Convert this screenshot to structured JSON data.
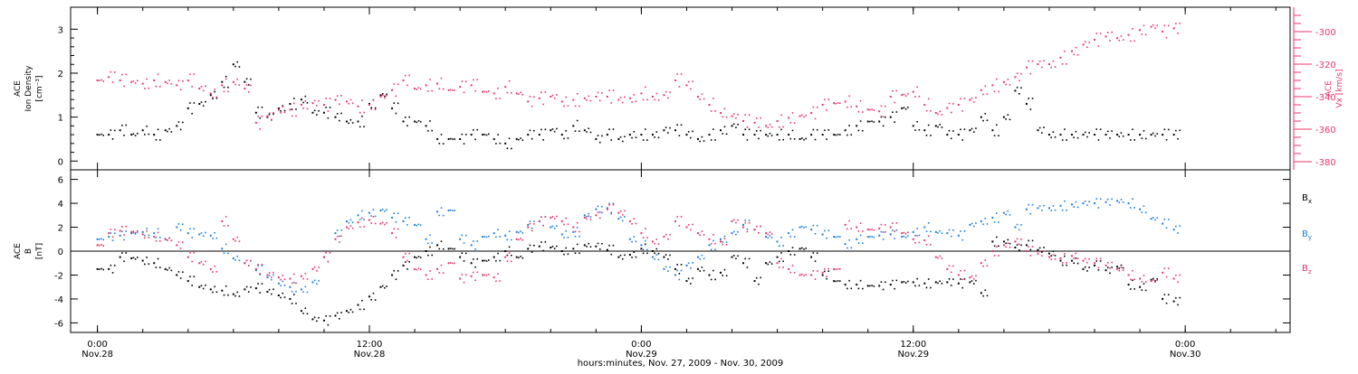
{
  "chart_data": [
    {
      "type": "scatter",
      "panel": "top",
      "ylabel_left": [
        "ACE",
        "Ion Density",
        "[cm⁻³]"
      ],
      "ylabel_right": [
        "ACE",
        "Vx [km/s]"
      ],
      "ylim_left": [
        -0.2,
        3.5
      ],
      "yticks_left": [
        "0",
        "1",
        "2",
        "3"
      ],
      "ylim_right": [
        -385,
        -285
      ],
      "yticks_right": [
        "-300",
        "-320",
        "-340",
        "-360",
        "-380"
      ],
      "series": [
        {
          "color": "#000000",
          "x": [
            0,
            0.5,
            1,
            1.5,
            2,
            2.5,
            3,
            3.5,
            4,
            4.5,
            5,
            5.5,
            6,
            6.5,
            7,
            7.5,
            8,
            8.5,
            9,
            9.5,
            10,
            10.5,
            11,
            11.5,
            12,
            12.5,
            13,
            13.5,
            14,
            14.5,
            15,
            15.5,
            16,
            16.5,
            17,
            17.5,
            18,
            18.5,
            19,
            19.5,
            20,
            20.5,
            21,
            21.5,
            22,
            22.5,
            23,
            23.5,
            24,
            24.5,
            25,
            25.5,
            26,
            26.5,
            27,
            27.5,
            28,
            28.5,
            29,
            29.5,
            30,
            30.5,
            31,
            31.5,
            32,
            32.5,
            33,
            33.5,
            34,
            34.5,
            35,
            35.5,
            36,
            36.5,
            37,
            37.5,
            38,
            38.5,
            39,
            39.5,
            40,
            40.5,
            41,
            41.5,
            42,
            42.5,
            43,
            43.5,
            44,
            44.5,
            45,
            45.5,
            46,
            46.5,
            47,
            47.5
          ],
          "values": [
            0.6,
            0.6,
            0.7,
            0.6,
            0.7,
            0.6,
            0.7,
            0.8,
            1.2,
            1.3,
            1.5,
            1.8,
            2.2,
            1.8,
            1.1,
            1.0,
            1.2,
            1.3,
            1.4,
            1.1,
            1.1,
            1.0,
            0.9,
            0.9,
            1.3,
            1.5,
            1.2,
            0.9,
            0.9,
            0.8,
            0.5,
            0.5,
            0.5,
            0.6,
            0.6,
            0.5,
            0.4,
            0.5,
            0.6,
            0.6,
            0.7,
            0.6,
            0.8,
            0.7,
            0.5,
            0.6,
            0.5,
            0.6,
            0.6,
            0.6,
            0.7,
            0.7,
            0.6,
            0.5,
            0.6,
            0.7,
            0.8,
            0.6,
            0.6,
            0.6,
            0.6,
            0.6,
            0.5,
            0.6,
            0.6,
            0.6,
            0.7,
            0.8,
            0.9,
            0.9,
            1.0,
            1.2,
            0.8,
            0.7,
            0.8,
            0.6,
            0.6,
            0.7,
            1.0,
            0.7,
            1.0,
            1.6,
            1.3,
            0.7,
            0.6,
            0.6,
            0.6,
            0.6,
            0.6,
            0.6,
            0.6,
            0.6,
            0.6,
            0.6,
            0.6,
            0.6
          ]
        },
        {
          "color": "#e8366a",
          "axis": "right",
          "x": [
            0,
            0.5,
            1,
            1.5,
            2,
            2.5,
            3,
            3.5,
            4,
            4.5,
            5,
            5.5,
            6,
            6.5,
            7,
            7.5,
            8,
            8.5,
            9,
            9.5,
            10,
            10.5,
            11,
            11.5,
            12,
            12.5,
            13,
            13.5,
            14,
            14.5,
            15,
            15.5,
            16,
            16.5,
            17,
            17.5,
            18,
            18.5,
            19,
            19.5,
            20,
            20.5,
            21,
            21.5,
            22,
            22.5,
            23,
            23.5,
            24,
            24.5,
            25,
            25.5,
            26,
            26.5,
            27,
            27.5,
            28,
            28.5,
            29,
            29.5,
            30,
            30.5,
            31,
            31.5,
            32,
            32.5,
            33,
            33.5,
            34,
            34.5,
            35,
            35.5,
            36,
            36.5,
            37,
            37.5,
            38,
            38.5,
            39,
            39.5,
            40,
            40.5,
            41,
            41.5,
            42,
            42.5,
            43,
            43.5,
            44,
            44.5,
            45,
            45.5,
            46,
            46.5,
            47,
            47.5
          ],
          "values": [
            -330,
            -328,
            -330,
            -331,
            -332,
            -330,
            -331,
            -333,
            -330,
            -335,
            -338,
            -333,
            -331,
            -335,
            -356,
            -352,
            -348,
            -348,
            -345,
            -344,
            -345,
            -342,
            -343,
            -346,
            -345,
            -340,
            -336,
            -330,
            -335,
            -333,
            -332,
            -336,
            -334,
            -333,
            -337,
            -338,
            -334,
            -338,
            -343,
            -341,
            -340,
            -343,
            -342,
            -341,
            -340,
            -340,
            -342,
            -341,
            -338,
            -340,
            -339,
            -330,
            -333,
            -340,
            -345,
            -350,
            -352,
            -355,
            -356,
            -358,
            -355,
            -353,
            -352,
            -350,
            -345,
            -344,
            -343,
            -346,
            -348,
            -349,
            -340,
            -339,
            -337,
            -345,
            -350,
            -347,
            -345,
            -342,
            -336,
            -333,
            -331,
            -328,
            -322,
            -320,
            -320,
            -316,
            -312,
            -308,
            -305,
            -303,
            -304,
            -302,
            -299,
            -297,
            -300,
            -298
          ]
        }
      ]
    },
    {
      "type": "scatter",
      "panel": "bottom",
      "ylabel_left": [
        "ACE",
        "B",
        "[nT]"
      ],
      "ylim": [
        -6.8,
        6.8
      ],
      "yticks": [
        "6",
        "4",
        "2",
        "0",
        "-2",
        "-4",
        "-6"
      ],
      "xlabel": "hours:minutes, Nov. 27, 2009 - Nov. 30, 2009",
      "xticks": [
        {
          "time": "0:00",
          "day": "Nov.28"
        },
        {
          "time": "12:00",
          "day": "Nov.28"
        },
        {
          "time": "0:00",
          "day": "Nov.29"
        },
        {
          "time": "12:00",
          "day": "Nov.29"
        },
        {
          "time": "0:00",
          "day": "Nov.30"
        }
      ],
      "legend": [
        "Bx",
        "By",
        "Bz"
      ],
      "series": [
        {
          "name": "Bx",
          "color": "#000000",
          "x": [
            0,
            0.5,
            1,
            1.5,
            2,
            2.5,
            3,
            3.5,
            4,
            4.5,
            5,
            5.5,
            6,
            6.5,
            7,
            7.5,
            8,
            8.5,
            9,
            9.5,
            10,
            10.5,
            11,
            11.5,
            12,
            12.5,
            13,
            13.5,
            14,
            14.5,
            15,
            15.5,
            16,
            16.5,
            17,
            17.5,
            18,
            18.5,
            19,
            19.5,
            20,
            20.5,
            21,
            21.5,
            22,
            22.5,
            23,
            23.5,
            24,
            24.5,
            25,
            25.5,
            26,
            26.5,
            27,
            27.5,
            28,
            28.5,
            29,
            29.5,
            30,
            30.5,
            31,
            31.5,
            32,
            32.5,
            33,
            33.5,
            34,
            34.5,
            35,
            35.5,
            36,
            36.5,
            37,
            37.5,
            38,
            38.5,
            39,
            39.5,
            40,
            40.5,
            41,
            41.5,
            42,
            42.5,
            43,
            43.5,
            44,
            44.5,
            45,
            45.5,
            46,
            46.5,
            47,
            47.5
          ],
          "values": [
            -1.5,
            -1.5,
            -0.5,
            -0.6,
            -0.8,
            -1.0,
            -1.5,
            -2.0,
            -2.5,
            -3.0,
            -3.2,
            -3.3,
            -3.6,
            -3.2,
            -3.1,
            -3.4,
            -3.7,
            -4.0,
            -5.0,
            -5.7,
            -5.8,
            -5.4,
            -5.0,
            -4.5,
            -3.8,
            -3.0,
            -2.0,
            -1.2,
            -0.5,
            0.0,
            0.5,
            0.2,
            -0.5,
            -1.0,
            -0.8,
            -0.5,
            0.0,
            -0.5,
            0.2,
            0.4,
            0.3,
            0.0,
            0.2,
            0.5,
            0.4,
            0.1,
            -0.5,
            -0.3,
            0.2,
            0.0,
            -0.5,
            -1.5,
            -2.5,
            -1.5,
            -2.0,
            -1.8,
            -0.5,
            -1.0,
            -2.5,
            -1.0,
            -0.5,
            0.0,
            0.2,
            -0.5,
            -2.0,
            -2.5,
            -2.8,
            -2.8,
            -2.9,
            -2.9,
            -2.8,
            -2.6,
            -2.6,
            -2.7,
            -2.6,
            -2.6,
            -2.7,
            -2.6,
            -3.5,
            0.8,
            0.8,
            0.3,
            0.5,
            0.1,
            -0.2,
            -0.8,
            -0.8,
            -1.5,
            -1.2,
            -1.6,
            -1.3,
            -2.8,
            -3.0,
            -2.4,
            -4.0,
            -4.2
          ]
        },
        {
          "name": "By",
          "color": "#1c7fdc",
          "x": [
            0,
            0.5,
            1,
            1.5,
            2,
            2.5,
            3,
            3.5,
            4,
            4.5,
            5,
            5.5,
            6,
            6.5,
            7,
            7.5,
            8,
            8.5,
            9,
            9.5,
            10,
            10.5,
            11,
            11.5,
            12,
            12.5,
            13,
            13.5,
            14,
            14.5,
            15,
            15.5,
            16,
            16.5,
            17,
            17.5,
            18,
            18.5,
            19,
            19.5,
            20,
            20.5,
            21,
            21.5,
            22,
            22.5,
            23,
            23.5,
            24,
            24.5,
            25,
            25.5,
            26,
            26.5,
            27,
            27.5,
            28,
            28.5,
            29,
            29.5,
            30,
            30.5,
            31,
            31.5,
            32,
            32.5,
            33,
            33.5,
            34,
            34.5,
            35,
            35.5,
            36,
            36.5,
            37,
            37.5,
            38,
            38.5,
            39,
            39.5,
            40,
            40.5,
            41,
            41.5,
            42,
            42.5,
            43,
            43.5,
            44,
            44.5,
            45,
            45.5,
            46,
            46.5,
            47,
            47.5
          ],
          "values": [
            1.0,
            1.2,
            1.3,
            1.5,
            1.6,
            1.5,
            1.0,
            2.0,
            1.5,
            1.4,
            1.3,
            0.2,
            -0.6,
            -1.0,
            -1.6,
            -2.2,
            -2.7,
            -3.0,
            -3.2,
            -2.6,
            -0.5,
            1.5,
            2.5,
            3.0,
            3.2,
            3.4,
            2.8,
            2.5,
            2.2,
            1.0,
            3.3,
            3.4,
            1.0,
            0.5,
            1.2,
            1.5,
            1.3,
            1.6,
            2.2,
            2.5,
            2.0,
            1.4,
            1.6,
            3.0,
            3.5,
            3.6,
            2.7,
            1.0,
            0.5,
            -0.5,
            -1.5,
            -2.0,
            -1.2,
            -0.5,
            0.5,
            1.0,
            1.5,
            2.2,
            1.8,
            1.2,
            0.8,
            1.5,
            2.0,
            1.8,
            1.4,
            1.2,
            0.6,
            1.0,
            1.2,
            1.3,
            1.4,
            1.2,
            1.6,
            2.0,
            1.6,
            1.5,
            1.3,
            2.2,
            2.5,
            2.8,
            3.2,
            2.0,
            3.5,
            3.6,
            3.6,
            3.8,
            3.9,
            4.0,
            4.0,
            4.1,
            4.2,
            4.0,
            3.5,
            2.7,
            2.3,
            1.8
          ]
        },
        {
          "name": "Bz",
          "color": "#e8366a",
          "x": [
            0,
            0.5,
            1,
            1.5,
            2,
            2.5,
            3,
            3.5,
            4,
            4.5,
            5,
            5.5,
            6,
            6.5,
            7,
            7.5,
            8,
            8.5,
            9,
            9.5,
            10,
            10.5,
            11,
            11.5,
            12,
            12.5,
            13,
            13.5,
            14,
            14.5,
            15,
            15.5,
            16,
            16.5,
            17,
            17.5,
            18,
            18.5,
            19,
            19.5,
            20,
            20.5,
            21,
            21.5,
            22,
            22.5,
            23,
            23.5,
            24,
            24.5,
            25,
            25.5,
            26,
            26.5,
            27,
            27.5,
            28,
            28.5,
            29,
            29.5,
            30,
            30.5,
            31,
            31.5,
            32,
            32.5,
            33,
            33.5,
            34,
            34.5,
            35,
            35.5,
            36,
            36.5,
            37,
            37.5,
            38,
            38.5,
            39,
            39.5,
            40,
            40.5,
            41,
            41.5,
            42,
            42.5,
            43,
            43.5,
            44,
            44.5,
            45,
            45.5,
            46,
            46.5,
            47,
            47.5
          ],
          "values": [
            0.5,
            1.5,
            1.7,
            1.6,
            1.4,
            1.2,
            1.0,
            0.5,
            -0.5,
            -1.0,
            -1.5,
            2.5,
            1.0,
            -1.0,
            -1.5,
            -2.0,
            -2.2,
            -2.3,
            -2.1,
            -1.5,
            -0.5,
            1.0,
            2.0,
            2.4,
            2.6,
            2.3,
            1.5,
            -0.5,
            -1.5,
            -2.0,
            -1.5,
            -1.0,
            -2.3,
            -2.1,
            -2.0,
            -2.2,
            -0.5,
            1.0,
            2.0,
            2.5,
            2.8,
            2.5,
            2.0,
            2.8,
            3.0,
            3.5,
            3.2,
            2.5,
            1.5,
            0.8,
            1.2,
            2.5,
            2.0,
            1.5,
            1.0,
            0.8,
            2.5,
            2.0,
            1.8,
            1.5,
            -1.0,
            -1.5,
            -2.0,
            -2.0,
            -1.8,
            -1.5,
            2.2,
            2.0,
            1.8,
            1.9,
            2.0,
            1.5,
            1.0,
            0.9,
            -0.5,
            -1.5,
            -2.0,
            -2.2,
            -1.0,
            0.0,
            0.5,
            0.8,
            0.0,
            -0.2,
            -0.5,
            -0.6,
            -0.4,
            -0.8,
            -1.0,
            -1.2,
            -1.5,
            -2.0,
            -2.3,
            -2.5,
            -1.8,
            -2.3
          ]
        }
      ]
    }
  ]
}
